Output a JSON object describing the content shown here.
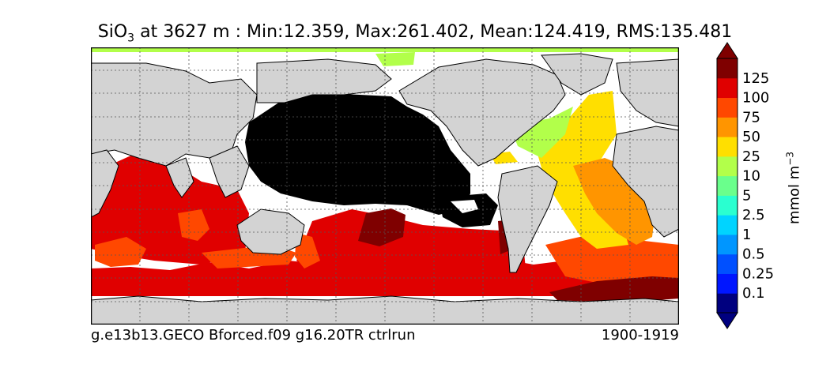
{
  "title": {
    "variable": "SiO",
    "subscript": "3",
    "rest": " at 3627 m : Min:12.359, Max:261.402, Mean:124.419, RMS:135.481"
  },
  "footer": {
    "run": "g.e13b13.GECO Bforced.f09 g16.20TR ctrlrun",
    "period": "1900-1919"
  },
  "colorbar": {
    "units_main": "mmol m",
    "units_exp": "−3",
    "levels": [
      "0.1",
      "0.25",
      "0.5",
      "1",
      "2.5",
      "5",
      "10",
      "25",
      "50",
      "75",
      "100",
      "125"
    ],
    "colors": [
      "#00007f",
      "#0016ff",
      "#0050ff",
      "#0096ff",
      "#00d4ff",
      "#2affd0",
      "#6aff8c",
      "#b2ff4a",
      "#ffdf00",
      "#ff9500",
      "#ff4800",
      "#e00000",
      "#7f0000"
    ],
    "extend": "both"
  },
  "map": {
    "projection": "cylindrical",
    "grid": true,
    "land_color": "#d3d3d3",
    "masked_color": "#000000",
    "missing_color": "#ffffff"
  }
}
